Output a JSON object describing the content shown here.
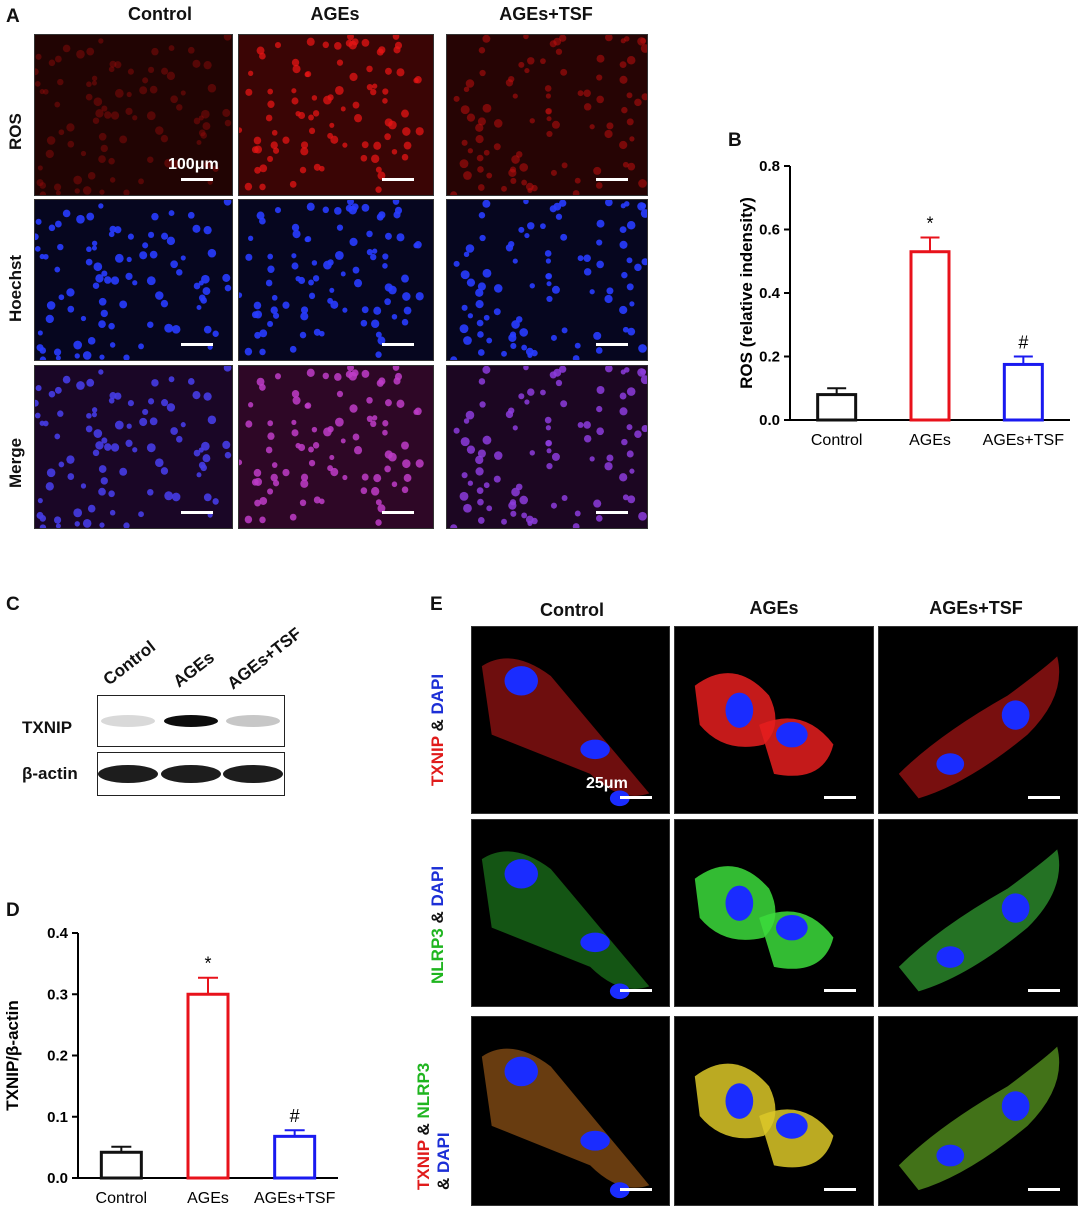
{
  "panels": {
    "a": {
      "letter": "A",
      "columns": [
        "Control",
        "AGEs",
        "AGEs+TSF"
      ],
      "rows": [
        "ROS",
        "Hoechst",
        "Merge"
      ],
      "scale_label": "100μm"
    },
    "b": {
      "letter": "B"
    },
    "c": {
      "letter": "C",
      "lanes": [
        "Control",
        "AGEs",
        "AGEs+TSF"
      ],
      "bands": [
        "TXNIP",
        "β-actin"
      ],
      "txnip_levels": [
        0.15,
        0.95,
        0.22
      ]
    },
    "d": {
      "letter": "D"
    },
    "e": {
      "letter": "E",
      "columns": [
        "Control",
        "AGEs",
        "AGEs+TSF"
      ],
      "scale_label": "25μm",
      "row_labels": [
        [
          {
            "t": "TXNIP",
            "c": "#e01b1b"
          },
          {
            "t": " & ",
            "c": "#111111"
          },
          {
            "t": "DAPI",
            "c": "#1c2fd6"
          }
        ],
        [
          {
            "t": "NLRP3",
            "c": "#1fb51f"
          },
          {
            "t": " & ",
            "c": "#111111"
          },
          {
            "t": "DAPI",
            "c": "#1c2fd6"
          }
        ],
        [
          {
            "t": "TXNIP",
            "c": "#e01b1b"
          },
          {
            "t": " & ",
            "c": "#111111"
          },
          {
            "t": "NLRP3",
            "c": "#1fb51f"
          }
        ]
      ],
      "row3_line2": [
        {
          "t": "& ",
          "c": "#111111"
        },
        {
          "t": "DAPI",
          "c": "#1c2fd6"
        }
      ]
    }
  },
  "chart_data": [
    {
      "id": "B",
      "type": "bar",
      "categories": [
        "Control",
        "AGEs",
        "AGEs+TSF"
      ],
      "values": [
        0.08,
        0.53,
        0.175
      ],
      "errors": [
        0.02,
        0.045,
        0.025
      ],
      "colors": [
        "#111111",
        "#e8121b",
        "#1a1af0"
      ],
      "annotations": [
        "",
        "*",
        "#"
      ],
      "ylabel": "ROS (relative indensity)",
      "ylim": [
        0,
        0.8
      ],
      "yticks": [
        "0.0",
        "0.2",
        "0.4",
        "0.6",
        "0.8"
      ]
    },
    {
      "id": "D",
      "type": "bar",
      "categories": [
        "Control",
        "AGEs",
        "AGEs+TSF"
      ],
      "values": [
        0.042,
        0.3,
        0.068
      ],
      "errors": [
        0.009,
        0.027,
        0.01
      ],
      "colors": [
        "#111111",
        "#e8121b",
        "#1a1af0"
      ],
      "annotations": [
        "",
        "*",
        "#"
      ],
      "ylabel": "TXNIP/β-actin",
      "ylim": [
        0,
        0.4
      ],
      "yticks": [
        "0.0",
        "0.1",
        "0.2",
        "0.3",
        "0.4"
      ]
    }
  ]
}
